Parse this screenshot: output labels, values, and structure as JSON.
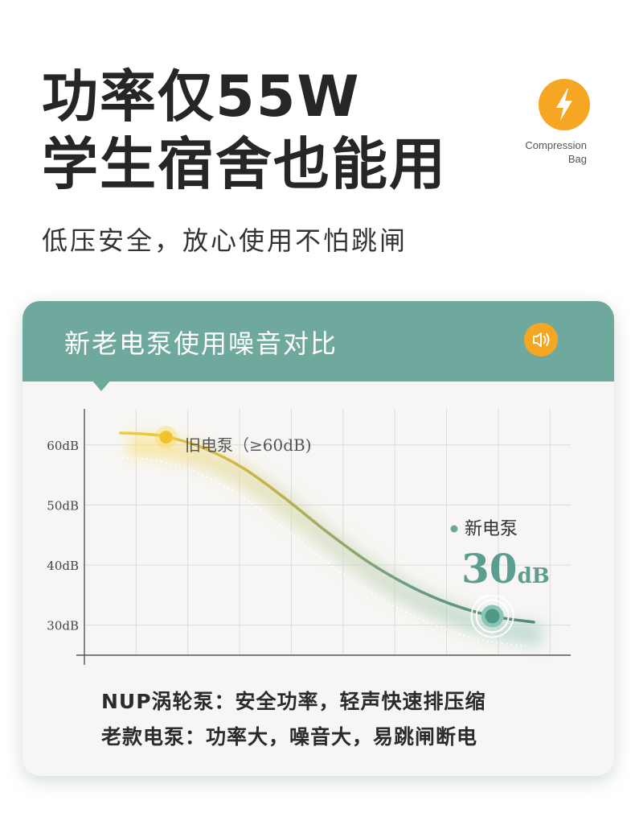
{
  "headline": {
    "line1": "功率仅55W",
    "line2": "学生宿舍也能用"
  },
  "subline": "低压安全，放心使用不怕跳闸",
  "badge": {
    "icon": "lightning-icon",
    "color": "#f5a623",
    "caption_line1": "Compression",
    "caption_line2": "Bag"
  },
  "panel": {
    "title": "新老电泵使用噪音对比",
    "sound_icon": "speaker-icon",
    "header_color": "#6fa89d"
  },
  "chart_data": {
    "type": "line",
    "title": "",
    "xlabel": "",
    "ylabel": "",
    "y_tick_labels": [
      "60dB",
      "50dB",
      "40dB",
      "30dB"
    ],
    "y_tick_values": [
      60,
      50,
      40,
      30
    ],
    "ylim": [
      25,
      66
    ],
    "xlim": [
      0,
      1
    ],
    "grid": true,
    "series": [
      {
        "name": "旧电泵（≥60dB)",
        "color": "#e8c23a",
        "x": [
          0.0,
          0.1,
          0.2,
          0.3,
          0.4,
          0.5,
          0.6,
          0.7,
          0.8,
          0.9,
          1.0
        ],
        "y": [
          62,
          61.5,
          59.5,
          56,
          51,
          45.5,
          40.5,
          36.5,
          33.5,
          31.5,
          30.5
        ]
      }
    ],
    "annotations": {
      "old_label": "旧电泵（≥60dB)",
      "new_label": "新电泵",
      "new_value": "30",
      "new_unit": "dB",
      "new_value_db": 30
    }
  },
  "bottom": {
    "line1": "NUP涡轮泵：安全功率，轻声快速排压缩",
    "line2": "老款电泵：功率大，噪音大，易跳闸断电"
  }
}
